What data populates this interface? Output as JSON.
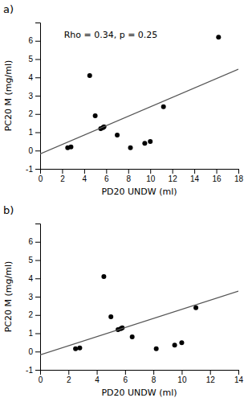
{
  "chart_data": [
    {
      "type": "scatter",
      "title": "a)",
      "annotation": "Rho = 0.34, p = 0.25",
      "x_label": "PD20 UNDW (ml)",
      "y_label": "PC20 M (mg/ml)",
      "xlim": [
        0,
        18
      ],
      "ylim": [
        -1,
        7
      ],
      "xticks": [
        0,
        2,
        4,
        6,
        8,
        10,
        12,
        14,
        16,
        18
      ],
      "yticks": [
        -1,
        0,
        1,
        2,
        3,
        4,
        5,
        6
      ],
      "series": [
        {
          "type": "scatter",
          "color": "#000000",
          "x": [
            2.5,
            2.8,
            4.5,
            5.0,
            5.5,
            5.7,
            5.8,
            7.0,
            8.2,
            9.5,
            10.0,
            11.2,
            16.2
          ],
          "values": [
            0.15,
            0.2,
            4.1,
            1.9,
            1.2,
            1.25,
            1.3,
            0.85,
            0.15,
            0.4,
            0.5,
            2.4,
            6.2
          ]
        },
        {
          "type": "line",
          "color": "#555555",
          "x": [
            0,
            18
          ],
          "values": [
            -0.18,
            4.45
          ]
        }
      ]
    },
    {
      "type": "scatter",
      "title": "b)",
      "x_label": "PD20 UNDW (ml)",
      "y_label": "PC20 M (mg/ml)",
      "xlim": [
        0,
        14
      ],
      "ylim": [
        -1,
        7
      ],
      "xticks": [
        0,
        2,
        4,
        6,
        8,
        10,
        12,
        14
      ],
      "yticks": [
        -1,
        0,
        1,
        2,
        3,
        4,
        5,
        6
      ],
      "series": [
        {
          "type": "scatter",
          "color": "#000000",
          "x": [
            2.5,
            2.8,
            4.5,
            5.0,
            5.5,
            5.7,
            5.8,
            6.5,
            8.2,
            9.5,
            10.0,
            11.0
          ],
          "values": [
            0.15,
            0.2,
            4.1,
            1.9,
            1.2,
            1.25,
            1.3,
            0.8,
            0.15,
            0.35,
            0.48,
            2.4
          ]
        },
        {
          "type": "line",
          "color": "#555555",
          "x": [
            0,
            14
          ],
          "values": [
            -0.18,
            3.3
          ]
        }
      ]
    }
  ]
}
